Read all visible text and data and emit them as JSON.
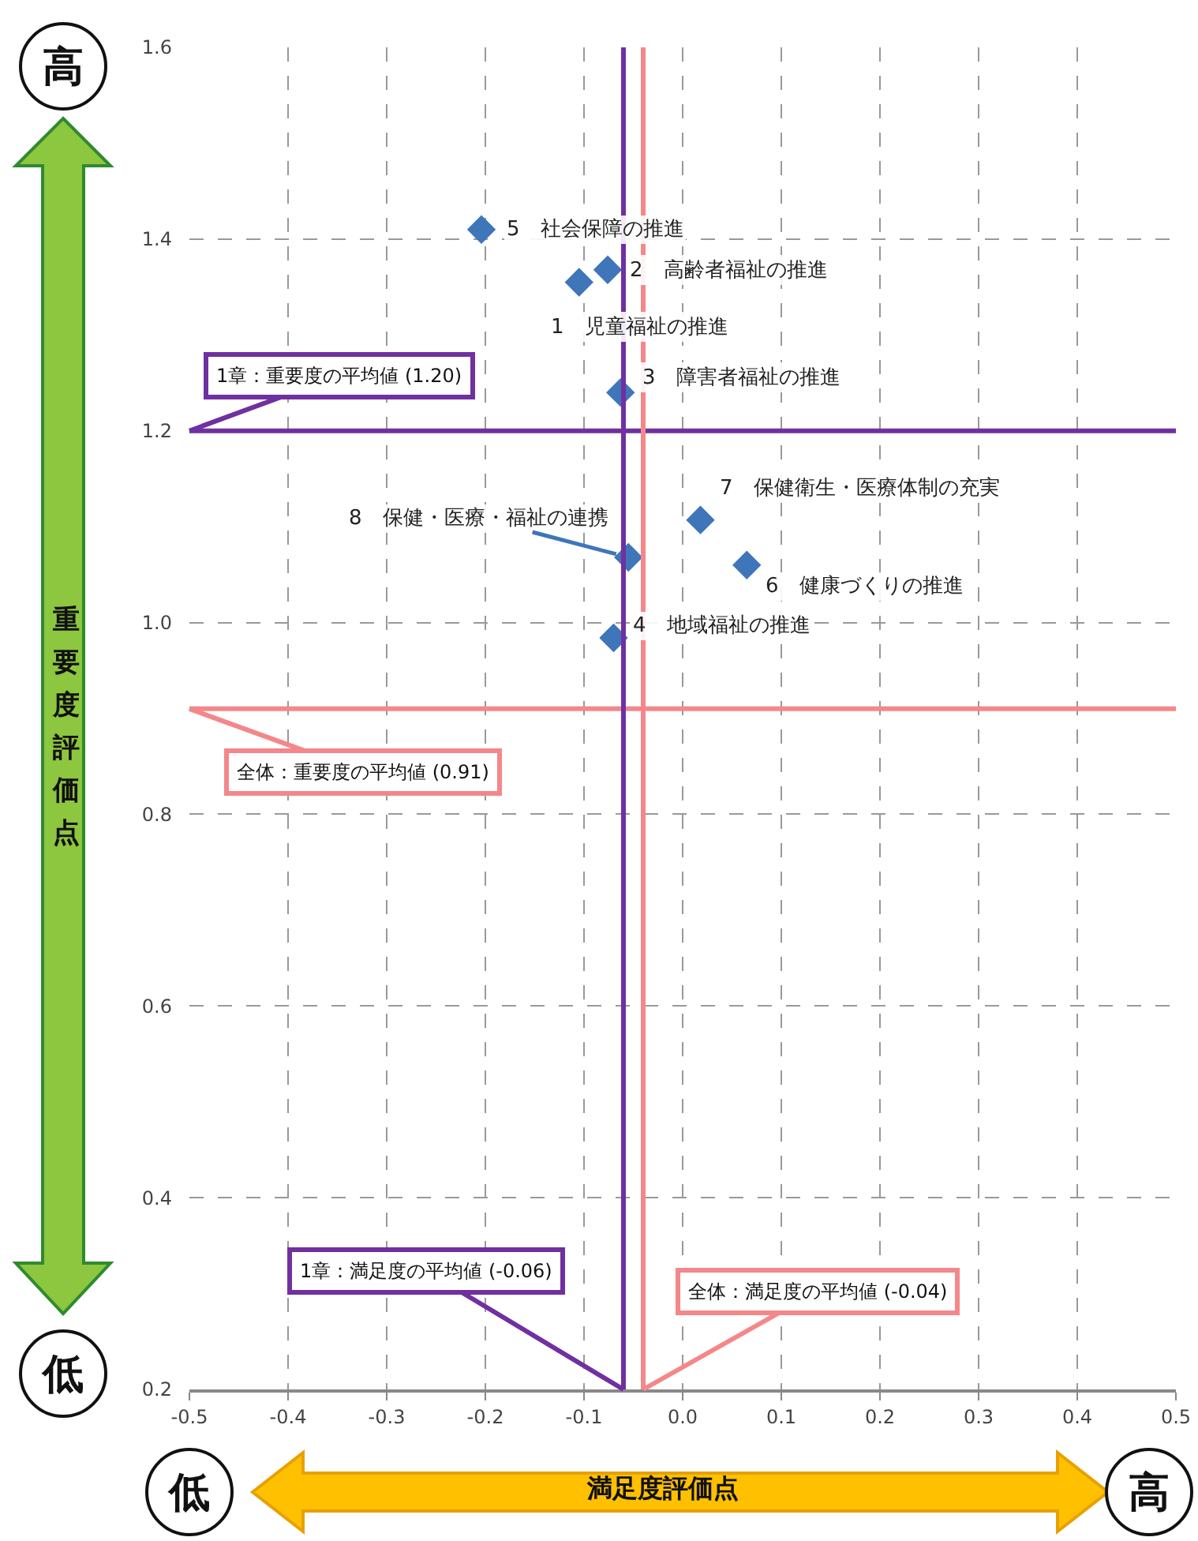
{
  "chart_data": {
    "type": "scatter",
    "xlabel": "満足度評価点",
    "ylabel": "重要度評価点",
    "x": [
      -0.105,
      -0.076,
      -0.063,
      -0.07,
      -0.204,
      0.065,
      0.018,
      -0.055
    ],
    "series": [
      {
        "color": "#3f75b9",
        "values": [
          1.355,
          1.368,
          1.24,
          0.984,
          1.41,
          1.06,
          1.107,
          1.068
        ]
      }
    ],
    "marker": "diamond",
    "xlim": [
      -0.5,
      0.5
    ],
    "xticks": [
      {
        "value": -0.5,
        "label": "-0.5"
      },
      {
        "value": -0.4,
        "label": "-0.4"
      },
      {
        "value": -0.3,
        "label": "-0.3"
      },
      {
        "value": -0.2,
        "label": "-0.2"
      },
      {
        "value": -0.1,
        "label": "-0.1"
      },
      {
        "value": 0,
        "label": "0.0"
      },
      {
        "value": 0.1,
        "label": "0.1"
      },
      {
        "value": 0.2,
        "label": "0.2"
      },
      {
        "value": 0.3,
        "label": "0.3"
      },
      {
        "value": 0.4,
        "label": "0.4"
      },
      {
        "value": 0.5,
        "label": "0.5"
      }
    ],
    "ylim": [
      0.2,
      1.6
    ],
    "yticks": [
      {
        "value": 0.2,
        "label": "0.2"
      },
      {
        "value": 0.4,
        "label": "0.4"
      },
      {
        "value": 0.6,
        "label": "0.6"
      },
      {
        "value": 0.8,
        "label": "0.8"
      },
      {
        "value": 1.0,
        "label": "1.0"
      },
      {
        "value": 1.2,
        "label": "1.2"
      },
      {
        "value": 1.4,
        "label": "1.4"
      },
      {
        "value": 1.6,
        "label": "1.6"
      }
    ],
    "grid": true,
    "ref_lines": [
      {
        "axis": "y",
        "value": 1.2,
        "label": "1章：重要度の平均値 (1.20)",
        "color": "#7030a0"
      },
      {
        "axis": "y",
        "value": 0.91,
        "label": "全体：重要度の平均値 (0.91)",
        "color": "#f4878a"
      },
      {
        "axis": "x",
        "value": -0.06,
        "label": "1章：満足度の平均値 (-0.06)",
        "color": "#7030a0"
      },
      {
        "axis": "x",
        "value": -0.04,
        "label": "全体：満足度の平均値 (-0.04)",
        "color": "#f4878a"
      }
    ],
    "annotations": [
      {
        "text": "1　児童福祉の推進",
        "x": -0.105,
        "y": 1.355
      },
      {
        "text": "2　高齢者福祉の推進",
        "x": -0.076,
        "y": 1.368
      },
      {
        "text": "3　障害者福祉の推進",
        "x": -0.063,
        "y": 1.24
      },
      {
        "text": "4　地域福祉の推進",
        "x": -0.07,
        "y": 0.984
      },
      {
        "text": "5　社会保障の推進",
        "x": -0.204,
        "y": 1.41
      },
      {
        "text": "6　健康づくりの推進",
        "x": 0.065,
        "y": 1.06
      },
      {
        "text": "7　保健衛生・医療体制の充実",
        "x": 0.018,
        "y": 1.107
      },
      {
        "text": "8　保健・医療・福祉の連携",
        "x": -0.055,
        "y": 1.068
      },
      "高",
      "低",
      "低",
      "高"
    ]
  }
}
